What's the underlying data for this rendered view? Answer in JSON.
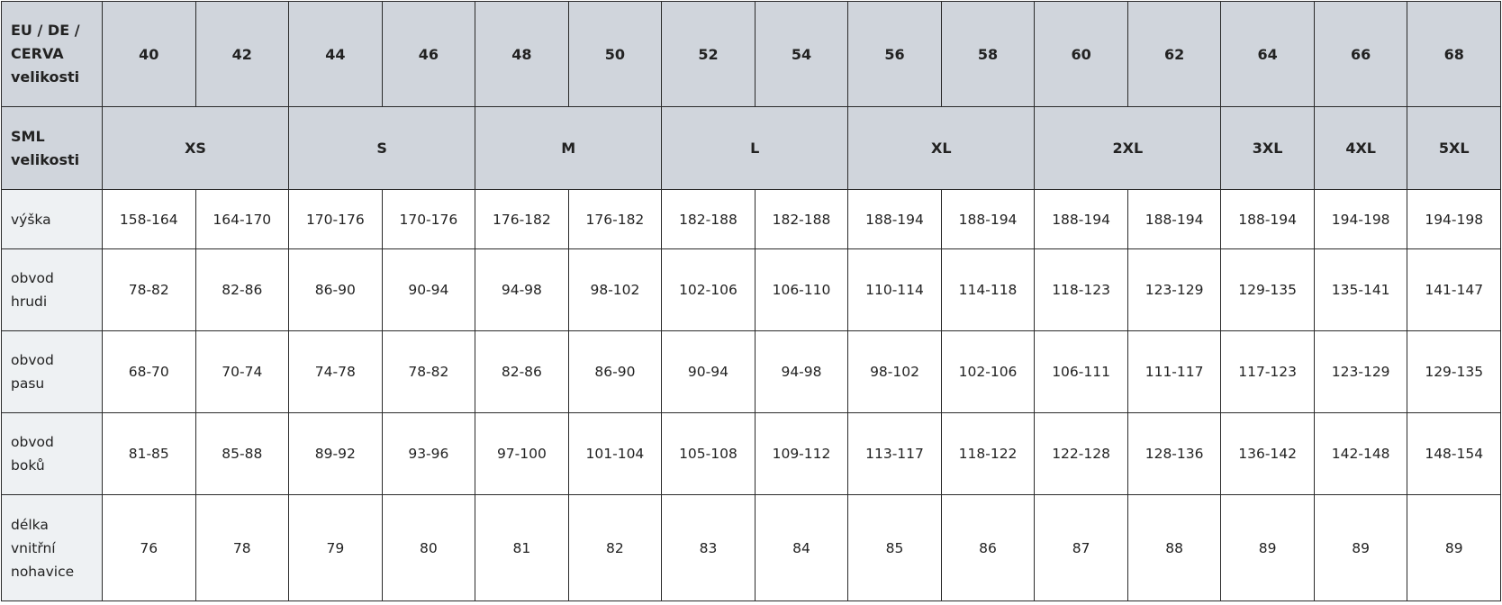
{
  "header_row1": {
    "label": [
      "EU / DE /",
      "CERVA",
      "velikosti"
    ],
    "sizes": [
      "40",
      "42",
      "44",
      "46",
      "48",
      "50",
      "52",
      "54",
      "56",
      "58",
      "60",
      "62",
      "64",
      "66",
      "68"
    ]
  },
  "header_row2": {
    "label": [
      "SML",
      "velikosti"
    ],
    "groups": [
      {
        "label": "XS",
        "span": 2
      },
      {
        "label": "S",
        "span": 2
      },
      {
        "label": "M",
        "span": 2
      },
      {
        "label": "L",
        "span": 2
      },
      {
        "label": "XL",
        "span": 2
      },
      {
        "label": "2XL",
        "span": 2
      },
      {
        "label": "3XL",
        "span": 1
      },
      {
        "label": "4XL",
        "span": 1
      },
      {
        "label": "5XL",
        "span": 1
      }
    ]
  },
  "rows": [
    {
      "label": [
        "výška"
      ],
      "values": [
        "158-164",
        "164-170",
        "170-176",
        "170-176",
        "176-182",
        "176-182",
        "182-188",
        "182-188",
        "188-194",
        "188-194",
        "188-194",
        "188-194",
        "188-194",
        "194-198",
        "194-198"
      ]
    },
    {
      "label": [
        "obvod",
        "hrudi"
      ],
      "values": [
        "78-82",
        "82-86",
        "86-90",
        "90-94",
        "94-98",
        "98-102",
        "102-106",
        "106-110",
        "110-114",
        "114-118",
        "118-123",
        "123-129",
        "129-135",
        "135-141",
        "141-147"
      ]
    },
    {
      "label": [
        "obvod",
        "pasu"
      ],
      "values": [
        "68-70",
        "70-74",
        "74-78",
        "78-82",
        "82-86",
        "86-90",
        "90-94",
        "94-98",
        "98-102",
        "102-106",
        "106-111",
        "111-117",
        "117-123",
        "123-129",
        "129-135"
      ]
    },
    {
      "label": [
        "obvod",
        "boků"
      ],
      "values": [
        "81-85",
        "85-88",
        "89-92",
        "93-96",
        "97-100",
        "101-104",
        "105-108",
        "109-112",
        "113-117",
        "118-122",
        "122-128",
        "128-136",
        "136-142",
        "142-148",
        "148-154"
      ]
    },
    {
      "label": [
        "délka",
        "vnitřní",
        "nohavice"
      ],
      "values": [
        "76",
        "78",
        "79",
        "80",
        "81",
        "82",
        "83",
        "84",
        "85",
        "86",
        "87",
        "88",
        "89",
        "89",
        "89"
      ]
    }
  ],
  "colors": {
    "header_bg": "#d0d5dc",
    "label_bg": "#eef1f3",
    "border": "#2a2a2a"
  }
}
